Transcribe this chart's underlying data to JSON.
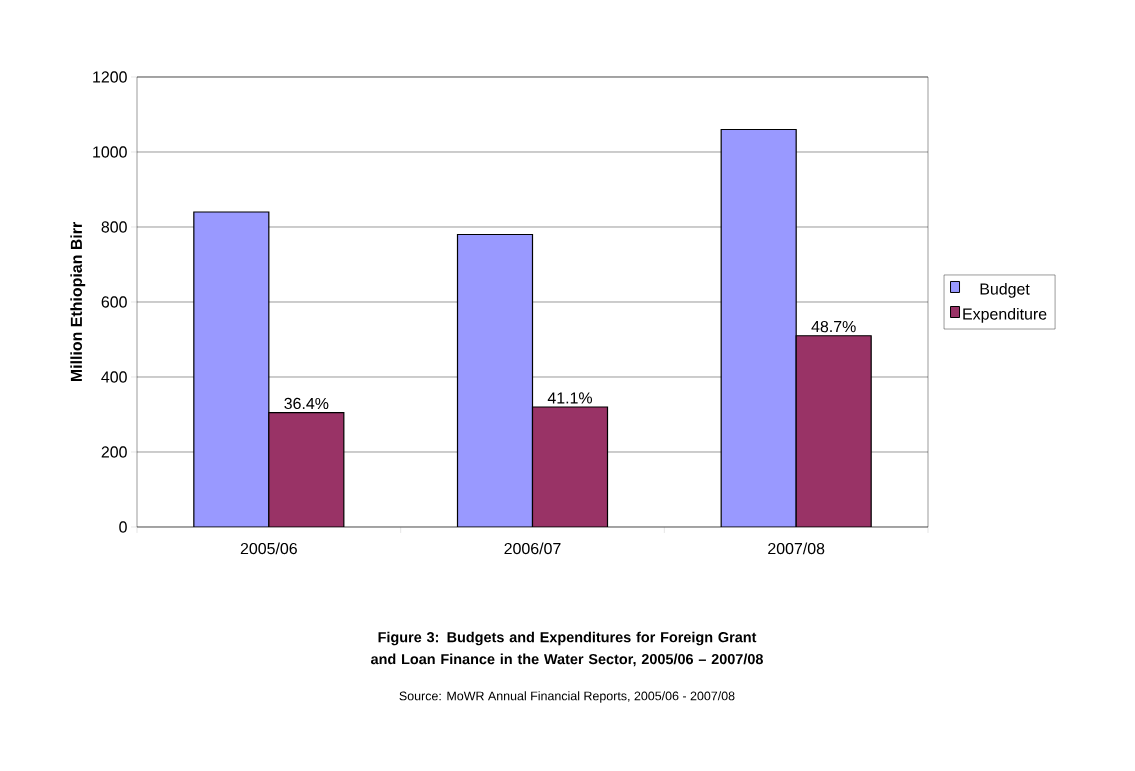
{
  "chart_data": {
    "type": "bar",
    "title": "Figure 3: Budgets and Expenditures for Foreign Grant and Loan Finance in the Water Sector, 2005/06 – 2007/08",
    "ylabel": "Million Ethiopian Birr",
    "categories": [
      "2005/06",
      "2006/07",
      "2007/08"
    ],
    "series": [
      {
        "name": "Budget",
        "color": "#9999ff",
        "values": [
          840,
          780,
          1060
        ]
      },
      {
        "name": "Expenditure",
        "color": "#993366",
        "values": [
          305,
          320,
          510
        ]
      }
    ],
    "ylim": [
      0,
      1200
    ],
    "yticks": [
      0,
      200,
      400,
      600,
      800,
      1000,
      1200
    ],
    "grid": "y",
    "legend": "right",
    "annotations": [
      {
        "text": "36.4%",
        "x": "2005/06",
        "y": 305
      },
      {
        "text": "41.1%",
        "x": "2006/07",
        "y": 320
      },
      {
        "text": "48.7%",
        "x": "2007/08",
        "y": 510
      },
      "Source: MoWR Annual Financial Reports, 2005/06 - 2007/08"
    ]
  }
}
